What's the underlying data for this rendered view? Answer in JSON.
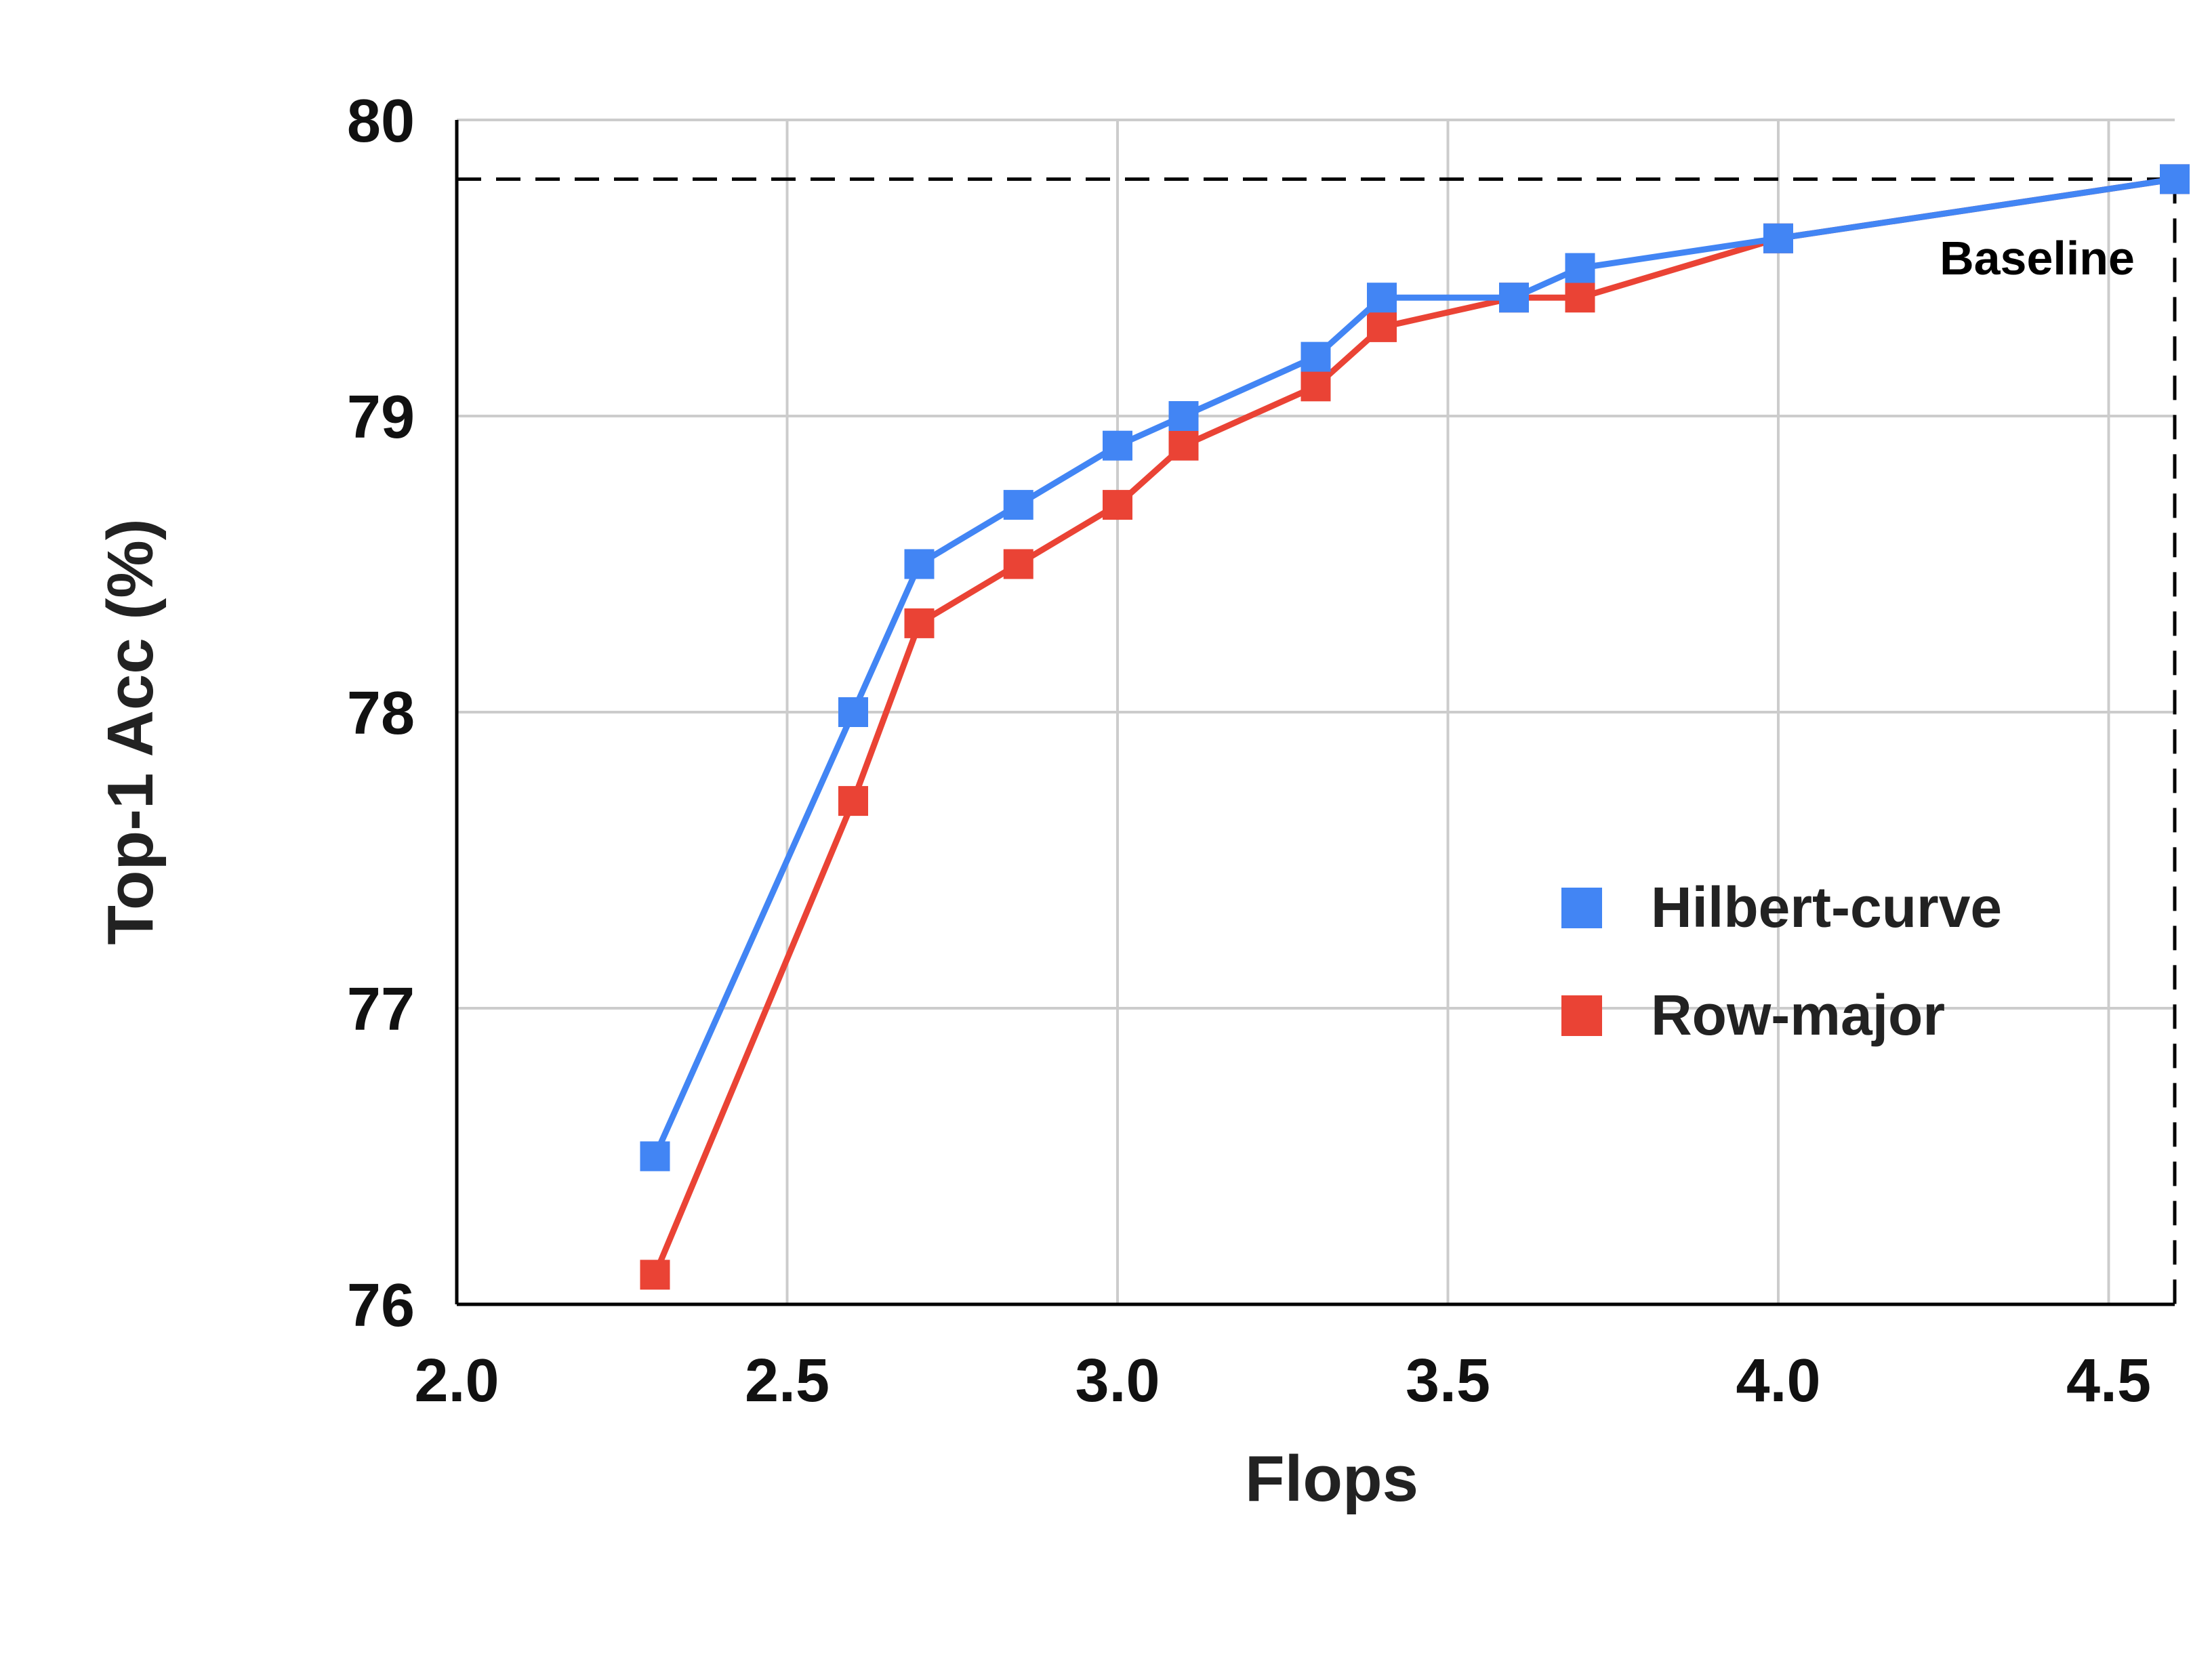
{
  "chart_data": {
    "type": "line",
    "xlabel": "Flops",
    "ylabel": "Top-1 Acc (%)",
    "xlim": [
      2.0,
      4.6
    ],
    "ylim": [
      76,
      80
    ],
    "xticks": [
      2.0,
      2.5,
      3.0,
      3.5,
      4.0,
      4.5
    ],
    "xtick_labels": [
      "2.0",
      "2.5",
      "3.0",
      "3.5",
      "4.0",
      "4.5"
    ],
    "yticks": [
      76,
      77,
      78,
      79,
      80
    ],
    "ytick_labels": [
      "76",
      "77",
      "78",
      "79",
      "80"
    ],
    "grid": true,
    "legend_position": "lower-right",
    "series": [
      {
        "name": "Hilbert-curve",
        "color": "#4285f4",
        "marker": "square",
        "x": [
          2.3,
          2.6,
          2.7,
          2.85,
          3.0,
          3.1,
          3.3,
          3.4,
          3.6,
          3.7,
          4.0,
          4.6
        ],
        "y": [
          76.5,
          78.0,
          78.5,
          78.7,
          78.9,
          79.0,
          79.2,
          79.4,
          79.4,
          79.5,
          79.6,
          79.8
        ]
      },
      {
        "name": "Row-major",
        "color": "#ea4335",
        "marker": "square",
        "x": [
          2.3,
          2.6,
          2.7,
          2.85,
          3.0,
          3.1,
          3.3,
          3.4,
          3.6,
          3.7,
          4.0,
          4.6
        ],
        "y": [
          76.1,
          77.7,
          78.3,
          78.5,
          78.7,
          78.9,
          79.1,
          79.3,
          79.4,
          79.4,
          79.6,
          79.8
        ]
      }
    ],
    "annotations": [
      {
        "text": "Baseline",
        "x": 4.6,
        "y": 79.8,
        "style": "dashed reference lines"
      }
    ]
  }
}
